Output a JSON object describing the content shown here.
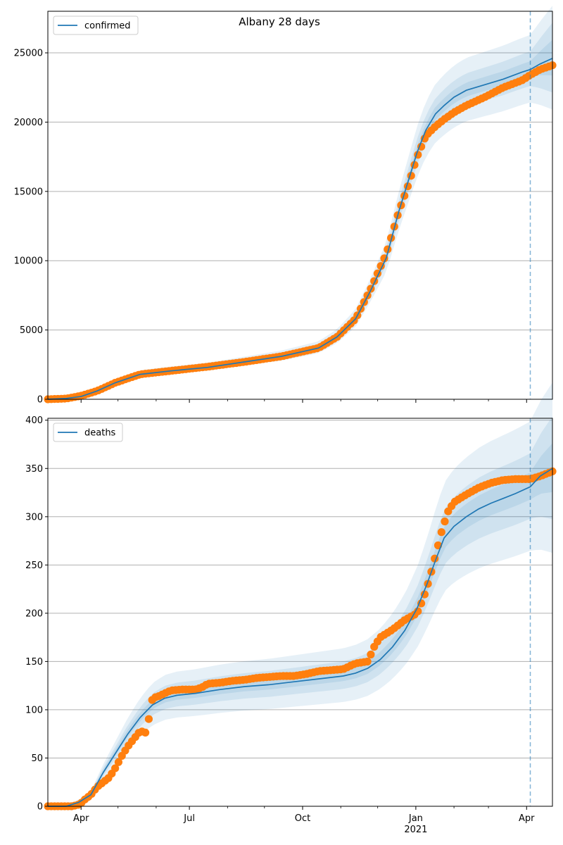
{
  "title": "Albany 28 days",
  "colors": {
    "model": "#1f77b4",
    "observed": "#ff7f0e",
    "band": "#1f77b4",
    "grid": "#b0b0b0",
    "divider": "#1f77b4"
  },
  "x_axis": {
    "start_day": 0,
    "end_day": 410,
    "ticks": [
      {
        "day": 27,
        "label": "Apr"
      },
      {
        "day": 115,
        "label": "Jul"
      },
      {
        "day": 207,
        "label": "Oct"
      },
      {
        "day": 299,
        "label": "Jan",
        "sublabel": "2021"
      },
      {
        "day": 389,
        "label": "Apr"
      }
    ],
    "minor_ticks": [
      57,
      88,
      146,
      176,
      238,
      268,
      330,
      358
    ],
    "forecast_start_day": 392
  },
  "chart_data": [
    {
      "type": "line",
      "name": "confirmed",
      "legend": "confirmed",
      "legend_position": "top-left",
      "ylim": [
        0,
        28000
      ],
      "yticks": [
        0,
        5000,
        10000,
        15000,
        20000,
        25000
      ],
      "grid": true,
      "model_x": [
        0,
        15,
        27,
        40,
        55,
        75,
        100,
        130,
        160,
        190,
        220,
        235,
        250,
        262,
        275,
        285,
        293,
        300,
        307,
        315,
        322,
        330,
        340,
        355,
        370,
        385,
        392
      ],
      "model_y": [
        0,
        60,
        200,
        600,
        1200,
        1800,
        2050,
        2300,
        2700,
        3100,
        3700,
        4500,
        5800,
        7800,
        10200,
        13500,
        15800,
        17800,
        19400,
        20600,
        21200,
        21800,
        22300,
        22700,
        23100,
        23600,
        23800
      ],
      "forecast_x": [
        392,
        400,
        410
      ],
      "forecast_y": [
        23800,
        24200,
        24600
      ],
      "band_rel_inner": [
        0.02,
        0.05
      ],
      "band_rel_mid": [
        0.05,
        0.1
      ],
      "band_rel_outer": [
        0.1,
        0.15
      ],
      "observed_x": [
        0,
        15,
        27,
        40,
        55,
        75,
        100,
        130,
        160,
        190,
        220,
        235,
        250,
        262,
        275,
        285,
        293,
        300,
        307,
        315,
        322,
        330,
        340,
        355,
        370,
        385,
        392,
        400,
        410
      ],
      "observed_y": [
        0,
        50,
        250,
        600,
        1200,
        1800,
        2050,
        2350,
        2700,
        3100,
        3700,
        4500,
        5800,
        7900,
        10500,
        13500,
        15500,
        17500,
        19000,
        19700,
        20200,
        20700,
        21200,
        21800,
        22500,
        23000,
        23400,
        23800,
        24100
      ]
    },
    {
      "type": "line",
      "name": "deaths",
      "legend": "deaths",
      "legend_position": "top-left",
      "ylim": [
        0,
        402
      ],
      "yticks": [
        0,
        50,
        100,
        150,
        200,
        250,
        300,
        350,
        400
      ],
      "grid": true,
      "model_x": [
        0,
        15,
        25,
        35,
        45,
        55,
        65,
        75,
        85,
        95,
        105,
        120,
        140,
        160,
        180,
        200,
        220,
        240,
        250,
        260,
        270,
        280,
        290,
        300,
        308,
        315,
        322,
        330,
        340,
        350,
        360,
        370,
        380,
        392
      ],
      "model_y": [
        0,
        0,
        4,
        12,
        35,
        55,
        75,
        92,
        105,
        112,
        115,
        117,
        121,
        124,
        126,
        129,
        132,
        135,
        138,
        143,
        152,
        165,
        182,
        205,
        230,
        255,
        278,
        290,
        300,
        308,
        314,
        319,
        324,
        331
      ],
      "forecast_x": [
        392,
        400,
        410
      ],
      "forecast_y": [
        331,
        342,
        350
      ],
      "band_rel_inner": [
        0.04,
        0.07
      ],
      "band_rel_mid": [
        0.1,
        0.15
      ],
      "band_rel_outer": [
        0.2,
        0.25
      ],
      "observed_x": [
        0,
        10,
        20,
        26,
        30,
        35,
        40,
        50,
        55,
        60,
        65,
        70,
        75,
        80,
        85,
        90,
        100,
        110,
        115,
        120,
        125,
        130,
        140,
        150,
        160,
        170,
        180,
        190,
        200,
        210,
        220,
        230,
        240,
        250,
        260,
        265,
        270,
        280,
        290,
        300,
        305,
        310,
        315,
        320,
        325,
        330,
        340,
        350,
        360,
        370,
        380,
        392,
        400,
        410
      ],
      "observed_y": [
        0,
        0,
        0,
        2,
        7,
        12,
        20,
        30,
        40,
        52,
        62,
        70,
        78,
        76,
        112,
        114,
        120,
        121,
        121,
        121,
        123,
        127,
        128,
        130,
        131,
        133,
        134,
        135,
        135,
        137,
        140,
        141,
        142,
        148,
        150,
        165,
        175,
        183,
        193,
        200,
        215,
        235,
        260,
        285,
        305,
        315,
        323,
        330,
        335,
        338,
        339,
        339,
        342,
        347
      ]
    }
  ]
}
